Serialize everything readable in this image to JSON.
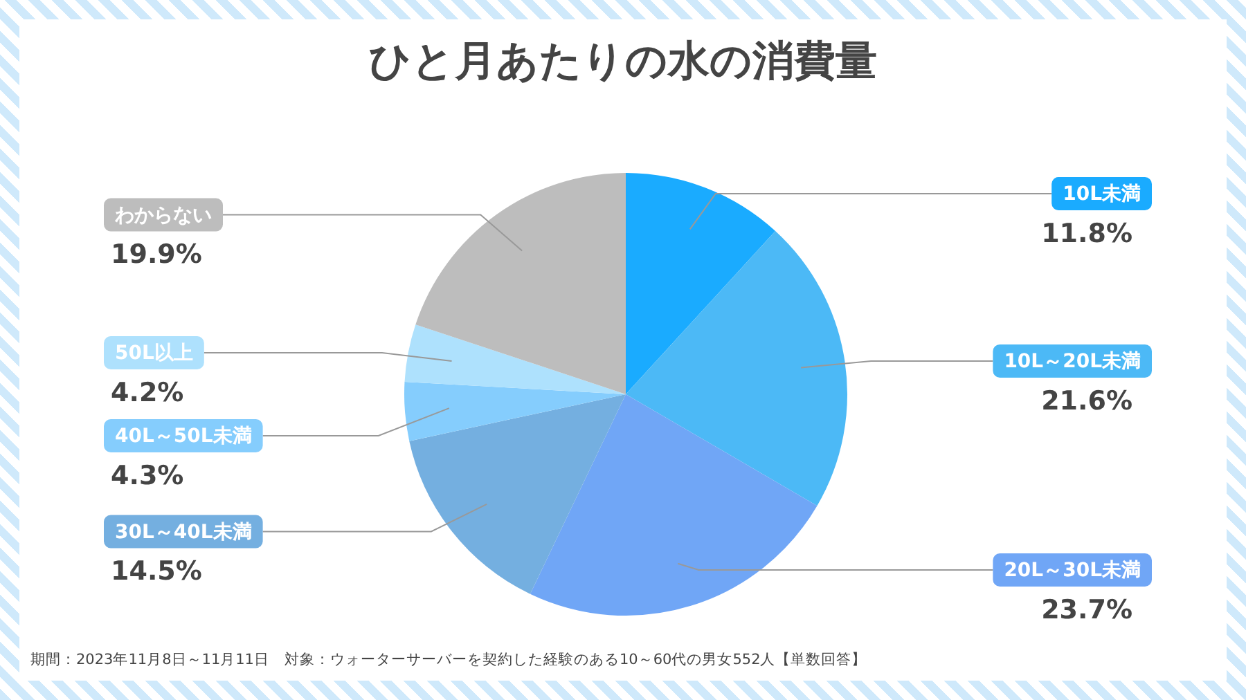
{
  "chart_data": {
    "type": "pie",
    "title": "ひと月あたりの水の消費量",
    "categories": [
      "10L未満",
      "10L～20L未満",
      "20L～30L未満",
      "30L～40L未満",
      "40L～50L未満",
      "50L以上",
      "わからない"
    ],
    "values": [
      11.8,
      21.6,
      23.7,
      14.5,
      4.3,
      4.2,
      19.9
    ],
    "value_labels": [
      "11.8%",
      "21.6%",
      "23.7%",
      "14.5%",
      "4.3%",
      "4.2%",
      "19.9%"
    ],
    "colors": [
      "#1aabff",
      "#4cb9f6",
      "#70a6f6",
      "#74afe0",
      "#85cdfd",
      "#aee1fd",
      "#bdbdbd"
    ],
    "legend": false,
    "annotations": [
      "期間：2023年11月8日～11月11日　対象：ウォーターサーバーを契約した経験のある10～60代の男女552人【単数回答】"
    ]
  }
}
